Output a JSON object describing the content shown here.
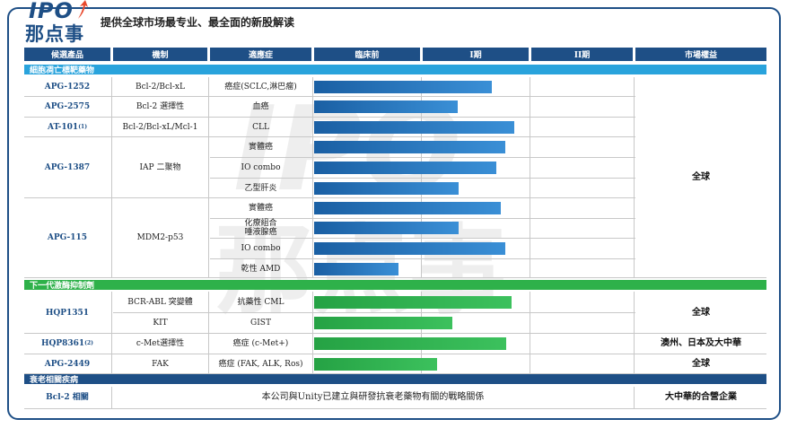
{
  "header": {
    "logo_ipo": "IPO",
    "logo_cn": "那点事",
    "slogan": "提供全球市场最专业、最全面的新股解读"
  },
  "columns": [
    "候選產品",
    "機制",
    "適應症",
    "臨床前",
    "I期",
    "II期",
    "市場權益"
  ],
  "sections": {
    "targeted": "細胞凋亡標靶藥物",
    "tki": "下一代激酶抑制劑",
    "aging": "衰老相關疾病"
  },
  "candidates": {
    "apg1252": "APG-1252",
    "apg2575": "APG-2575",
    "at101": "AT-101",
    "at101_sup": "(1)",
    "apg1387": "APG-1387",
    "apg115": "APG-115",
    "hqp1351": "HQP1351",
    "hqp8361": "HQP8361",
    "hqp8361_sup": "(2)",
    "apg2449": "APG-2449",
    "bcl2": "Bcl-2 相關"
  },
  "mechanisms": {
    "apg1252": "Bcl-2/Bcl-xL",
    "apg2575": "Bcl-2 選擇性",
    "at101": "Bcl-2/Bcl-xL/Mcl-1",
    "apg1387": "IAP 二聚物",
    "apg115": "MDM2-p53",
    "hqp1351": "BCR-ABL 突變體",
    "hqp1351b": "KIT",
    "hqp8361": "c-Met選擇性",
    "apg2449": "FAK"
  },
  "indications": {
    "r1": "癌症(SCLC,淋巴瘤)",
    "r2": "血癌",
    "r3": "CLL",
    "r4": "實體癌",
    "r5": "IO combo",
    "r6": "乙型肝炎",
    "r7": "實體癌",
    "r8a": "化療組合",
    "r8b": "唾液腺癌",
    "r9": "IO combo",
    "r10": "乾性 AMD",
    "r11": "抗藥性 CML",
    "r12": "GIST",
    "r13": "癌症 (c-Met+)",
    "r14": "癌症 (FAK, ALK, Ros)"
  },
  "markets": {
    "global1": "全球",
    "global2": "全球",
    "hqp8361": "澳州、日本及大中華",
    "global3": "全球",
    "bcl2": "大中華的合營企業"
  },
  "aging_note": "本公司與Unity已建立與研發抗衰老藥物有關的戰略關係",
  "progress": {
    "note": "bar extent in stage units: 0=start of 臨床前, 1=end of 臨床前, 2=end of I期, 3=end of II期",
    "r1": 1.64,
    "r2": 1.32,
    "r3": 1.84,
    "r4": 1.76,
    "r5": 1.68,
    "r6": 1.33,
    "r7": 1.72,
    "r8": 1.33,
    "r9": 1.76,
    "r10": 0.78,
    "r11": 1.82,
    "r12": 1.27,
    "r13": 1.77,
    "r14": 1.13
  },
  "colors": {
    "navy": "#1e4f86",
    "section_blue": "#29a3dc",
    "section_green": "#2eb14a",
    "bar_blue": "#1a5fa3",
    "bar_green": "#2fb553"
  }
}
